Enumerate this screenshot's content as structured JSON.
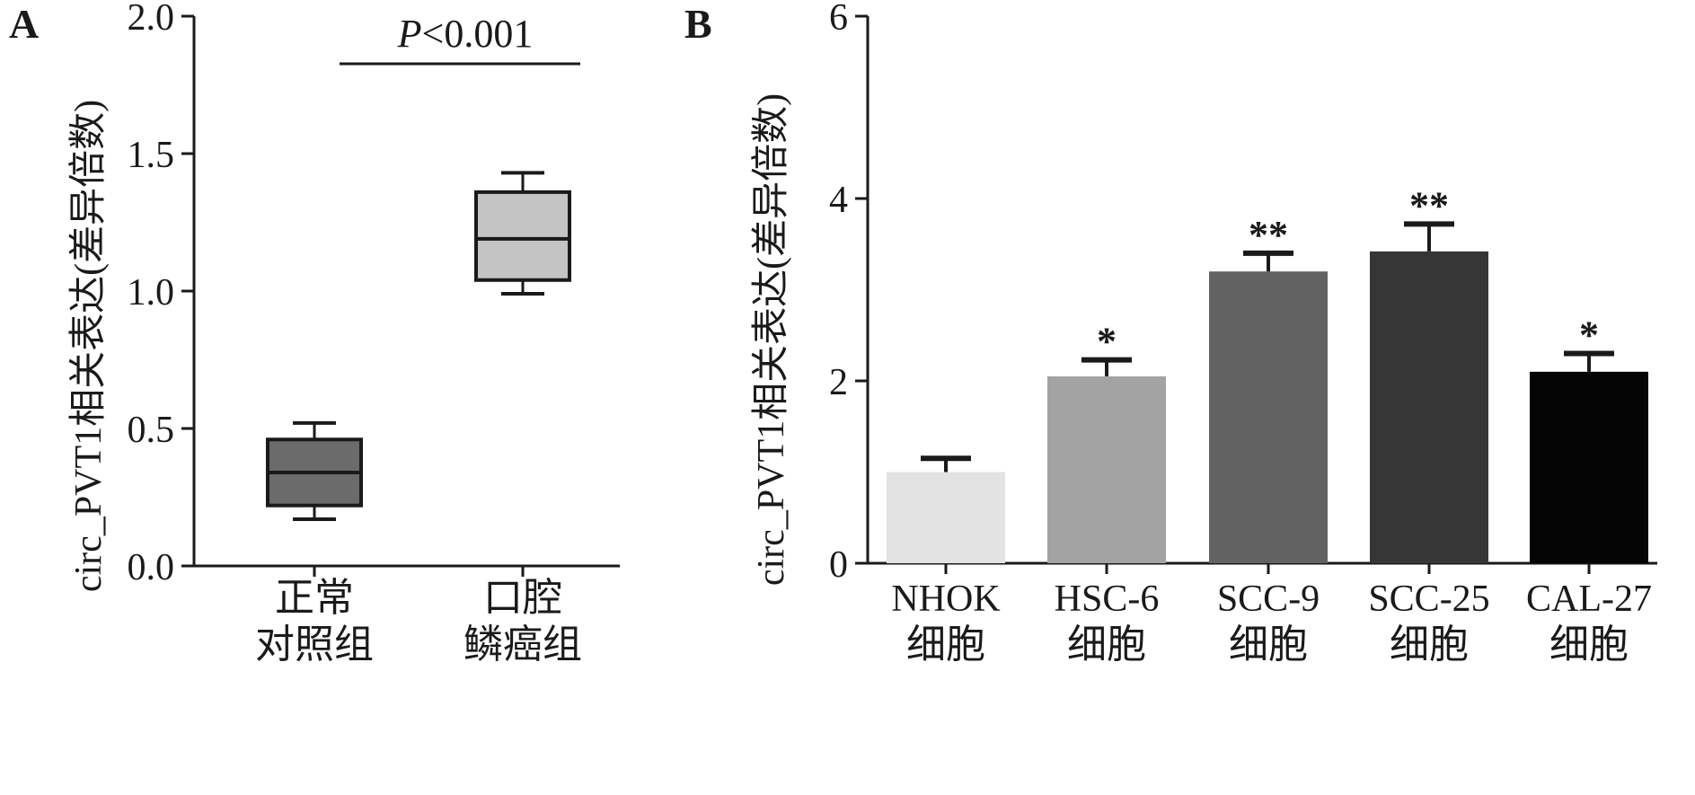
{
  "panel_a": {
    "label": "A",
    "pvalue_prefix": "P",
    "pvalue_rest": "<0.001",
    "yticks": [
      "0.0",
      "0.5",
      "1.0",
      "1.5",
      "2.0"
    ],
    "ylabel": "circ_PVT1相关表达(差异倍数)",
    "categories": [
      [
        "正常",
        "对照组"
      ],
      [
        "口腔",
        "鳞癌组"
      ]
    ]
  },
  "panel_b": {
    "label": "B",
    "yticks": [
      "0",
      "2",
      "4",
      "6"
    ],
    "ylabel": "circ_PVT1相关表达(差异倍数)",
    "categories": [
      [
        "NHOK",
        "细胞"
      ],
      [
        "HSC-6",
        "细胞"
      ],
      [
        "SCC-9",
        "细胞"
      ],
      [
        "SCC-25",
        "细胞"
      ],
      [
        "CAL-27",
        "细胞"
      ]
    ],
    "significance": [
      "",
      "*",
      "**",
      "**",
      "*"
    ]
  },
  "colors": {
    "box_normal": "#6b6b6b",
    "box_tumor": "#c4c4c4",
    "bars": [
      "#e3e3e3",
      "#a3a3a3",
      "#626262",
      "#363636",
      "#050505"
    ],
    "axis": "#1a1a1a"
  },
  "chart_data": [
    {
      "type": "box",
      "title": "",
      "xlabel": "",
      "ylabel": "circ_PVT1相关表达(差异倍数)",
      "ylim": [
        0,
        2.0
      ],
      "categories": [
        "正常对照组",
        "口腔鳞癌组"
      ],
      "boxes": [
        {
          "min": 0.17,
          "q1": 0.22,
          "median": 0.34,
          "q3": 0.46,
          "max": 0.52
        },
        {
          "min": 0.99,
          "q1": 1.04,
          "median": 1.19,
          "q3": 1.36,
          "max": 1.43
        }
      ],
      "annotation": "P<0.001",
      "grid": false
    },
    {
      "type": "bar",
      "title": "",
      "xlabel": "",
      "ylabel": "circ_PVT1相关表达(差异倍数)",
      "ylim": [
        0,
        6
      ],
      "categories": [
        "NHOK细胞",
        "HSC-6细胞",
        "SCC-9细胞",
        "SCC-25细胞",
        "CAL-27细胞"
      ],
      "values": [
        1.0,
        2.05,
        3.2,
        3.42,
        2.1
      ],
      "errors": [
        0.15,
        0.18,
        0.2,
        0.3,
        0.2
      ],
      "significance": [
        "",
        "*",
        "**",
        "**",
        "*"
      ],
      "grid": false
    }
  ]
}
